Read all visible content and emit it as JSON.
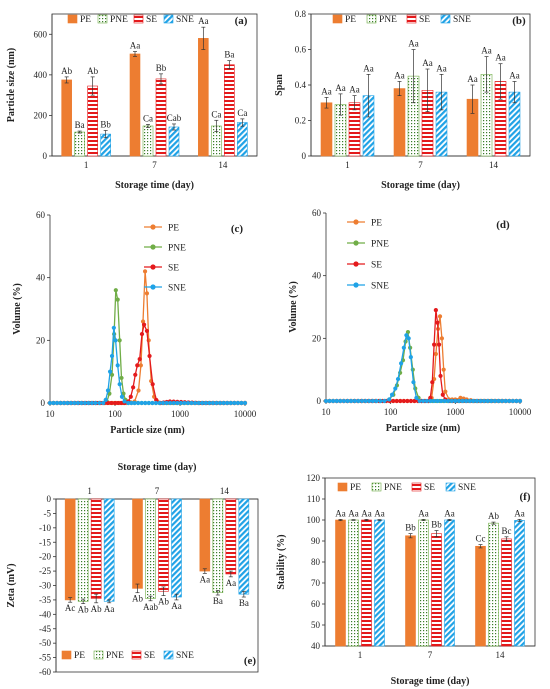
{
  "colors": {
    "PE": "#ed7d31",
    "PNE": "#70ad47",
    "SE": "#e41a1c",
    "SNE": "#1fa2e6",
    "err": "#333333"
  },
  "chart_data": [
    {
      "panel": "(a)",
      "type": "bar",
      "categories": [
        "1",
        "7",
        "14"
      ],
      "xlabel": "Storage time (day)",
      "ylabel": "Particle size (nm)",
      "ylim": [
        0,
        700
      ],
      "yticks": [
        0,
        200,
        400,
        600
      ],
      "legend": "top",
      "grid": false,
      "series": [
        {
          "name": "PE",
          "values": [
            375,
            503,
            580
          ],
          "errors": [
            15,
            12,
            55
          ],
          "labels": [
            "Ab",
            "Aa",
            "Aa"
          ]
        },
        {
          "name": "PNE",
          "values": [
            118,
            148,
            148
          ],
          "errors": [
            5,
            8,
            28
          ],
          "labels": [
            "Ba",
            "Ca",
            "Ca"
          ]
        },
        {
          "name": "SE",
          "values": [
            345,
            380,
            450
          ],
          "errors": [
            45,
            25,
            20
          ],
          "labels": [
            "Ab",
            "Bb",
            "Ba"
          ]
        },
        {
          "name": "SNE",
          "values": [
            108,
            143,
            165
          ],
          "errors": [
            18,
            15,
            18
          ],
          "labels": [
            "Bb",
            "Cab",
            "Ca"
          ]
        }
      ]
    },
    {
      "panel": "(b)",
      "type": "bar",
      "categories": [
        "1",
        "7",
        "14"
      ],
      "xlabel": "Storage time (day)",
      "ylabel": "Span",
      "ylim": [
        0,
        0.8
      ],
      "yticks": [
        0,
        0.2,
        0.4,
        0.6,
        0.8
      ],
      "legend": "top",
      "grid": false,
      "series": [
        {
          "name": "PE",
          "values": [
            0.3,
            0.38,
            0.32
          ],
          "errors": [
            0.03,
            0.04,
            0.08
          ],
          "labels": [
            "Aa",
            "Aa",
            "Aa"
          ]
        },
        {
          "name": "PNE",
          "values": [
            0.29,
            0.45,
            0.46
          ],
          "errors": [
            0.06,
            0.15,
            0.1
          ],
          "labels": [
            "Aa",
            "Aa",
            "Aa"
          ]
        },
        {
          "name": "SE",
          "values": [
            0.3,
            0.37,
            0.42
          ],
          "errors": [
            0.04,
            0.12,
            0.1
          ],
          "labels": [
            "Aa",
            "Aa",
            "Aa"
          ]
        },
        {
          "name": "SNE",
          "values": [
            0.34,
            0.36,
            0.36
          ],
          "errors": [
            0.12,
            0.1,
            0.06
          ],
          "labels": [
            "Aa",
            "Aa",
            "Aa"
          ]
        }
      ]
    },
    {
      "panel": "(c)",
      "type": "line",
      "xscale": "log",
      "xlim": [
        10,
        10000
      ],
      "xticks": [
        10,
        100,
        1000,
        10000
      ],
      "ylim": [
        0,
        60
      ],
      "yticks": [
        0,
        20,
        40,
        60
      ],
      "xlabel": "Particle size (nm)",
      "ylabel": "Volume (%)",
      "legend": "top-left",
      "series": [
        {
          "name": "PE",
          "x": [
            10,
            50,
            150,
            200,
            230,
            250,
            270,
            290,
            310,
            330,
            360,
            400,
            450,
            500,
            1000,
            10000
          ],
          "y": [
            0,
            0,
            0,
            0.5,
            4,
            12,
            26,
            42,
            35,
            20,
            7,
            2,
            0.5,
            0,
            0,
            0
          ]
        },
        {
          "name": "PNE",
          "x": [
            10,
            50,
            68,
            75,
            82,
            90,
            97,
            103,
            110,
            118,
            126,
            135,
            145,
            160,
            200,
            10000
          ],
          "y": [
            0,
            0,
            0,
            0.5,
            3,
            9,
            22,
            36,
            33,
            20,
            8,
            3,
            1,
            0,
            0,
            0
          ]
        },
        {
          "name": "SE",
          "x": [
            10,
            100,
            140,
            160,
            175,
            190,
            205,
            220,
            240,
            260,
            280,
            310,
            340,
            380,
            430,
            500,
            700,
            2000,
            10000
          ],
          "y": [
            0,
            0,
            0,
            0.5,
            2,
            5,
            9,
            12,
            14,
            22,
            25,
            23,
            15,
            6,
            1,
            0,
            0.5,
            0,
            0
          ]
        },
        {
          "name": "SNE",
          "x": [
            10,
            50,
            66,
            72,
            78,
            84,
            90,
            96,
            102,
            110,
            118,
            128,
            140,
            160,
            200,
            10000
          ],
          "y": [
            0,
            0,
            0,
            1,
            4,
            10,
            15,
            24,
            20,
            12,
            6,
            2,
            0.5,
            0,
            0,
            0
          ]
        }
      ]
    },
    {
      "panel": "(d)",
      "type": "line",
      "xscale": "log",
      "xlim": [
        10,
        10000
      ],
      "xticks": [
        10,
        100,
        1000,
        10000
      ],
      "ylim": [
        0,
        60
      ],
      "yticks": [
        0,
        20,
        40,
        60
      ],
      "xlabel": "Particle size (nm)",
      "ylabel": "Volume (%)",
      "legend": "top-left",
      "series": [
        {
          "name": "PE",
          "x": [
            10,
            300,
            380,
            430,
            470,
            500,
            540,
            580,
            620,
            660,
            700,
            800,
            1000,
            1200,
            1500,
            2000,
            10000
          ],
          "y": [
            0,
            0,
            0,
            1,
            7,
            15,
            23,
            27,
            20,
            10,
            3,
            0.5,
            0.5,
            1,
            0.5,
            0,
            0
          ]
        },
        {
          "name": "PNE",
          "x": [
            10,
            60,
            80,
            95,
            110,
            125,
            140,
            155,
            170,
            185,
            200,
            220,
            240,
            270,
            300,
            10000
          ],
          "y": [
            0,
            0,
            0,
            0.5,
            2,
            5,
            9,
            13,
            19,
            22,
            17,
            10,
            4,
            1,
            0,
            0
          ]
        },
        {
          "name": "SE",
          "x": [
            10,
            300,
            380,
            410,
            440,
            470,
            500,
            530,
            560,
            590,
            640,
            700,
            800,
            10000
          ],
          "y": [
            0,
            0,
            0,
            1,
            6,
            18,
            29,
            25,
            18,
            8,
            2,
            0.5,
            0,
            0
          ]
        },
        {
          "name": "SNE",
          "x": [
            10,
            60,
            80,
            95,
            105,
            118,
            130,
            145,
            160,
            175,
            190,
            205,
            225,
            250,
            280,
            10000
          ],
          "y": [
            0,
            0,
            0,
            0.5,
            2,
            4,
            7,
            12,
            17,
            21,
            20,
            14,
            6,
            1,
            0,
            0
          ]
        }
      ]
    },
    {
      "panel": "(e)",
      "type": "bar",
      "categories": [
        "1",
        "7",
        "14"
      ],
      "xlabel": "Storage time (day)",
      "xaxis_position": "top",
      "ylabel": "Zeta (mV)",
      "ylim": [
        -60,
        0
      ],
      "yticks": [
        0,
        -5,
        -10,
        -15,
        -20,
        -25,
        -30,
        -35,
        -40,
        -45,
        -50,
        -55,
        -60
      ],
      "legend": "bottom",
      "grid": false,
      "series": [
        {
          "name": "PE",
          "values": [
            -35,
            -31,
            -25
          ],
          "errors": [
            0.8,
            1.5,
            0.8
          ],
          "labels": [
            "Ac",
            "Ab",
            "Aa"
          ]
        },
        {
          "name": "PNE",
          "values": [
            -35.5,
            -34.5,
            -32.5
          ],
          "errors": [
            0.8,
            0.8,
            0.8
          ],
          "labels": [
            "Ab",
            "Aab",
            "Ba"
          ]
        },
        {
          "name": "SE",
          "values": [
            -34.5,
            -32,
            -26
          ],
          "errors": [
            1.5,
            1.5,
            1
          ],
          "labels": [
            "Ab",
            "Ab",
            "Aa"
          ]
        },
        {
          "name": "SNE",
          "values": [
            -35.5,
            -34,
            -33
          ],
          "errors": [
            0.5,
            1,
            1
          ],
          "labels": [
            "Aa",
            "Aa",
            "Ba"
          ]
        }
      ]
    },
    {
      "panel": "(f)",
      "type": "bar",
      "categories": [
        "1",
        "7",
        "14"
      ],
      "xlabel": "Storage time (day)",
      "ylabel": "Stability (%)",
      "ylim": [
        40,
        120
      ],
      "yticks": [
        40,
        50,
        60,
        70,
        80,
        90,
        100,
        110,
        120
      ],
      "legend": "top",
      "grid": false,
      "series": [
        {
          "name": "PE",
          "values": [
            100,
            92.5,
            87.5
          ],
          "errors": [
            0.3,
            1,
            0.8
          ],
          "labels": [
            "Aa",
            "Bb",
            "Cc"
          ]
        },
        {
          "name": "PNE",
          "values": [
            100,
            100,
            98.5
          ],
          "errors": [
            0.2,
            0.3,
            0.5
          ],
          "labels": [
            "Aa",
            "Aa",
            "Ab"
          ]
        },
        {
          "name": "SE",
          "values": [
            100,
            93.5,
            91
          ],
          "errors": [
            0.3,
            1.5,
            1
          ],
          "labels": [
            "Aa",
            "Bb",
            "Bc"
          ]
        },
        {
          "name": "SNE",
          "values": [
            100,
            100,
            99.8
          ],
          "errors": [
            0.2,
            0.3,
            0.5
          ],
          "labels": [
            "Aa",
            "Aa",
            "Aa"
          ]
        }
      ]
    }
  ]
}
